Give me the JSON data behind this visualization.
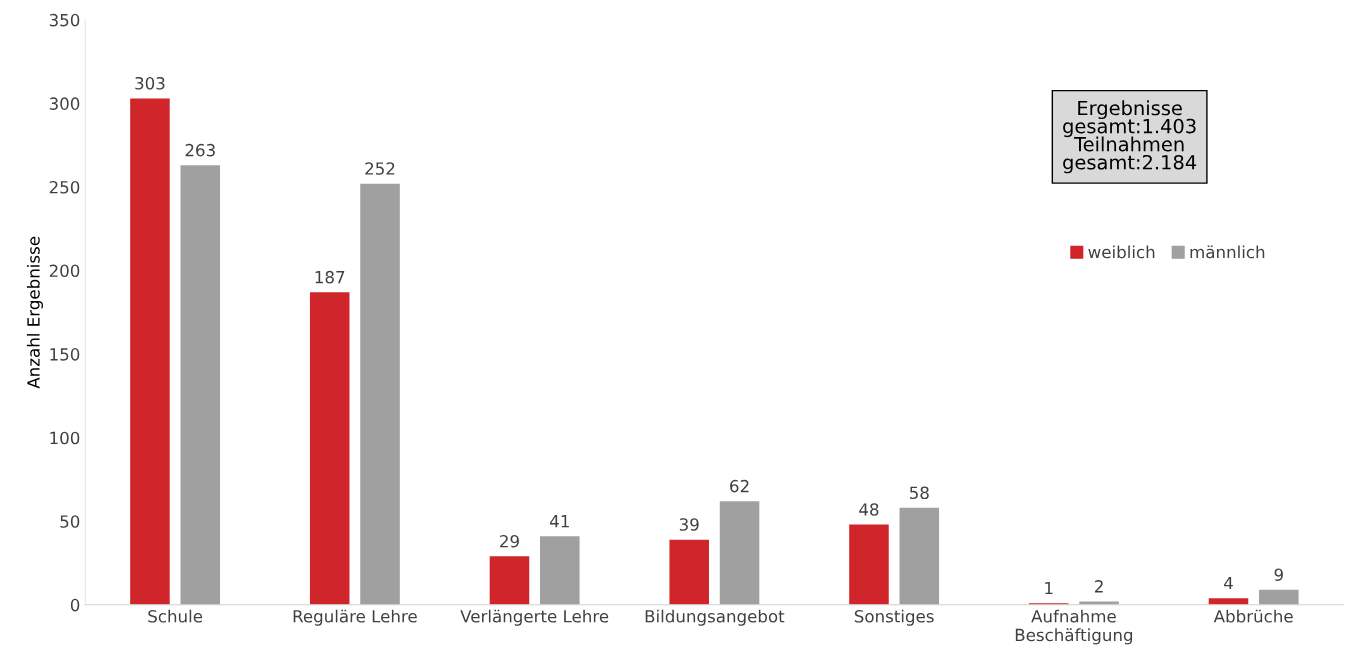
{
  "chart_data": {
    "type": "bar",
    "ylabel": "Anzahl Ergebnisse",
    "categories": [
      "Schule",
      "Reguläre Lehre",
      "Verlängerte Lehre",
      "Bildungsangebot",
      "Sonstiges",
      "Aufnahme\nBeschäftigung",
      "Abbrüche"
    ],
    "series": [
      {
        "name": "weiblich",
        "color": "#d0252a",
        "values": [
          303,
          187,
          29,
          39,
          48,
          1,
          4
        ]
      },
      {
        "name": "männlich",
        "color": "#a0a0a0",
        "values": [
          263,
          252,
          41,
          62,
          58,
          2,
          9
        ]
      }
    ],
    "ylim": [
      0,
      350
    ],
    "yticks": [
      0,
      50,
      100,
      150,
      200,
      250,
      300,
      350
    ],
    "grid": false,
    "legend": "top right",
    "data_labels": true,
    "annotations": [
      "Ergebnisse\ngesamt:1.403\nTeilnahmen\ngesamt:2.184"
    ]
  }
}
